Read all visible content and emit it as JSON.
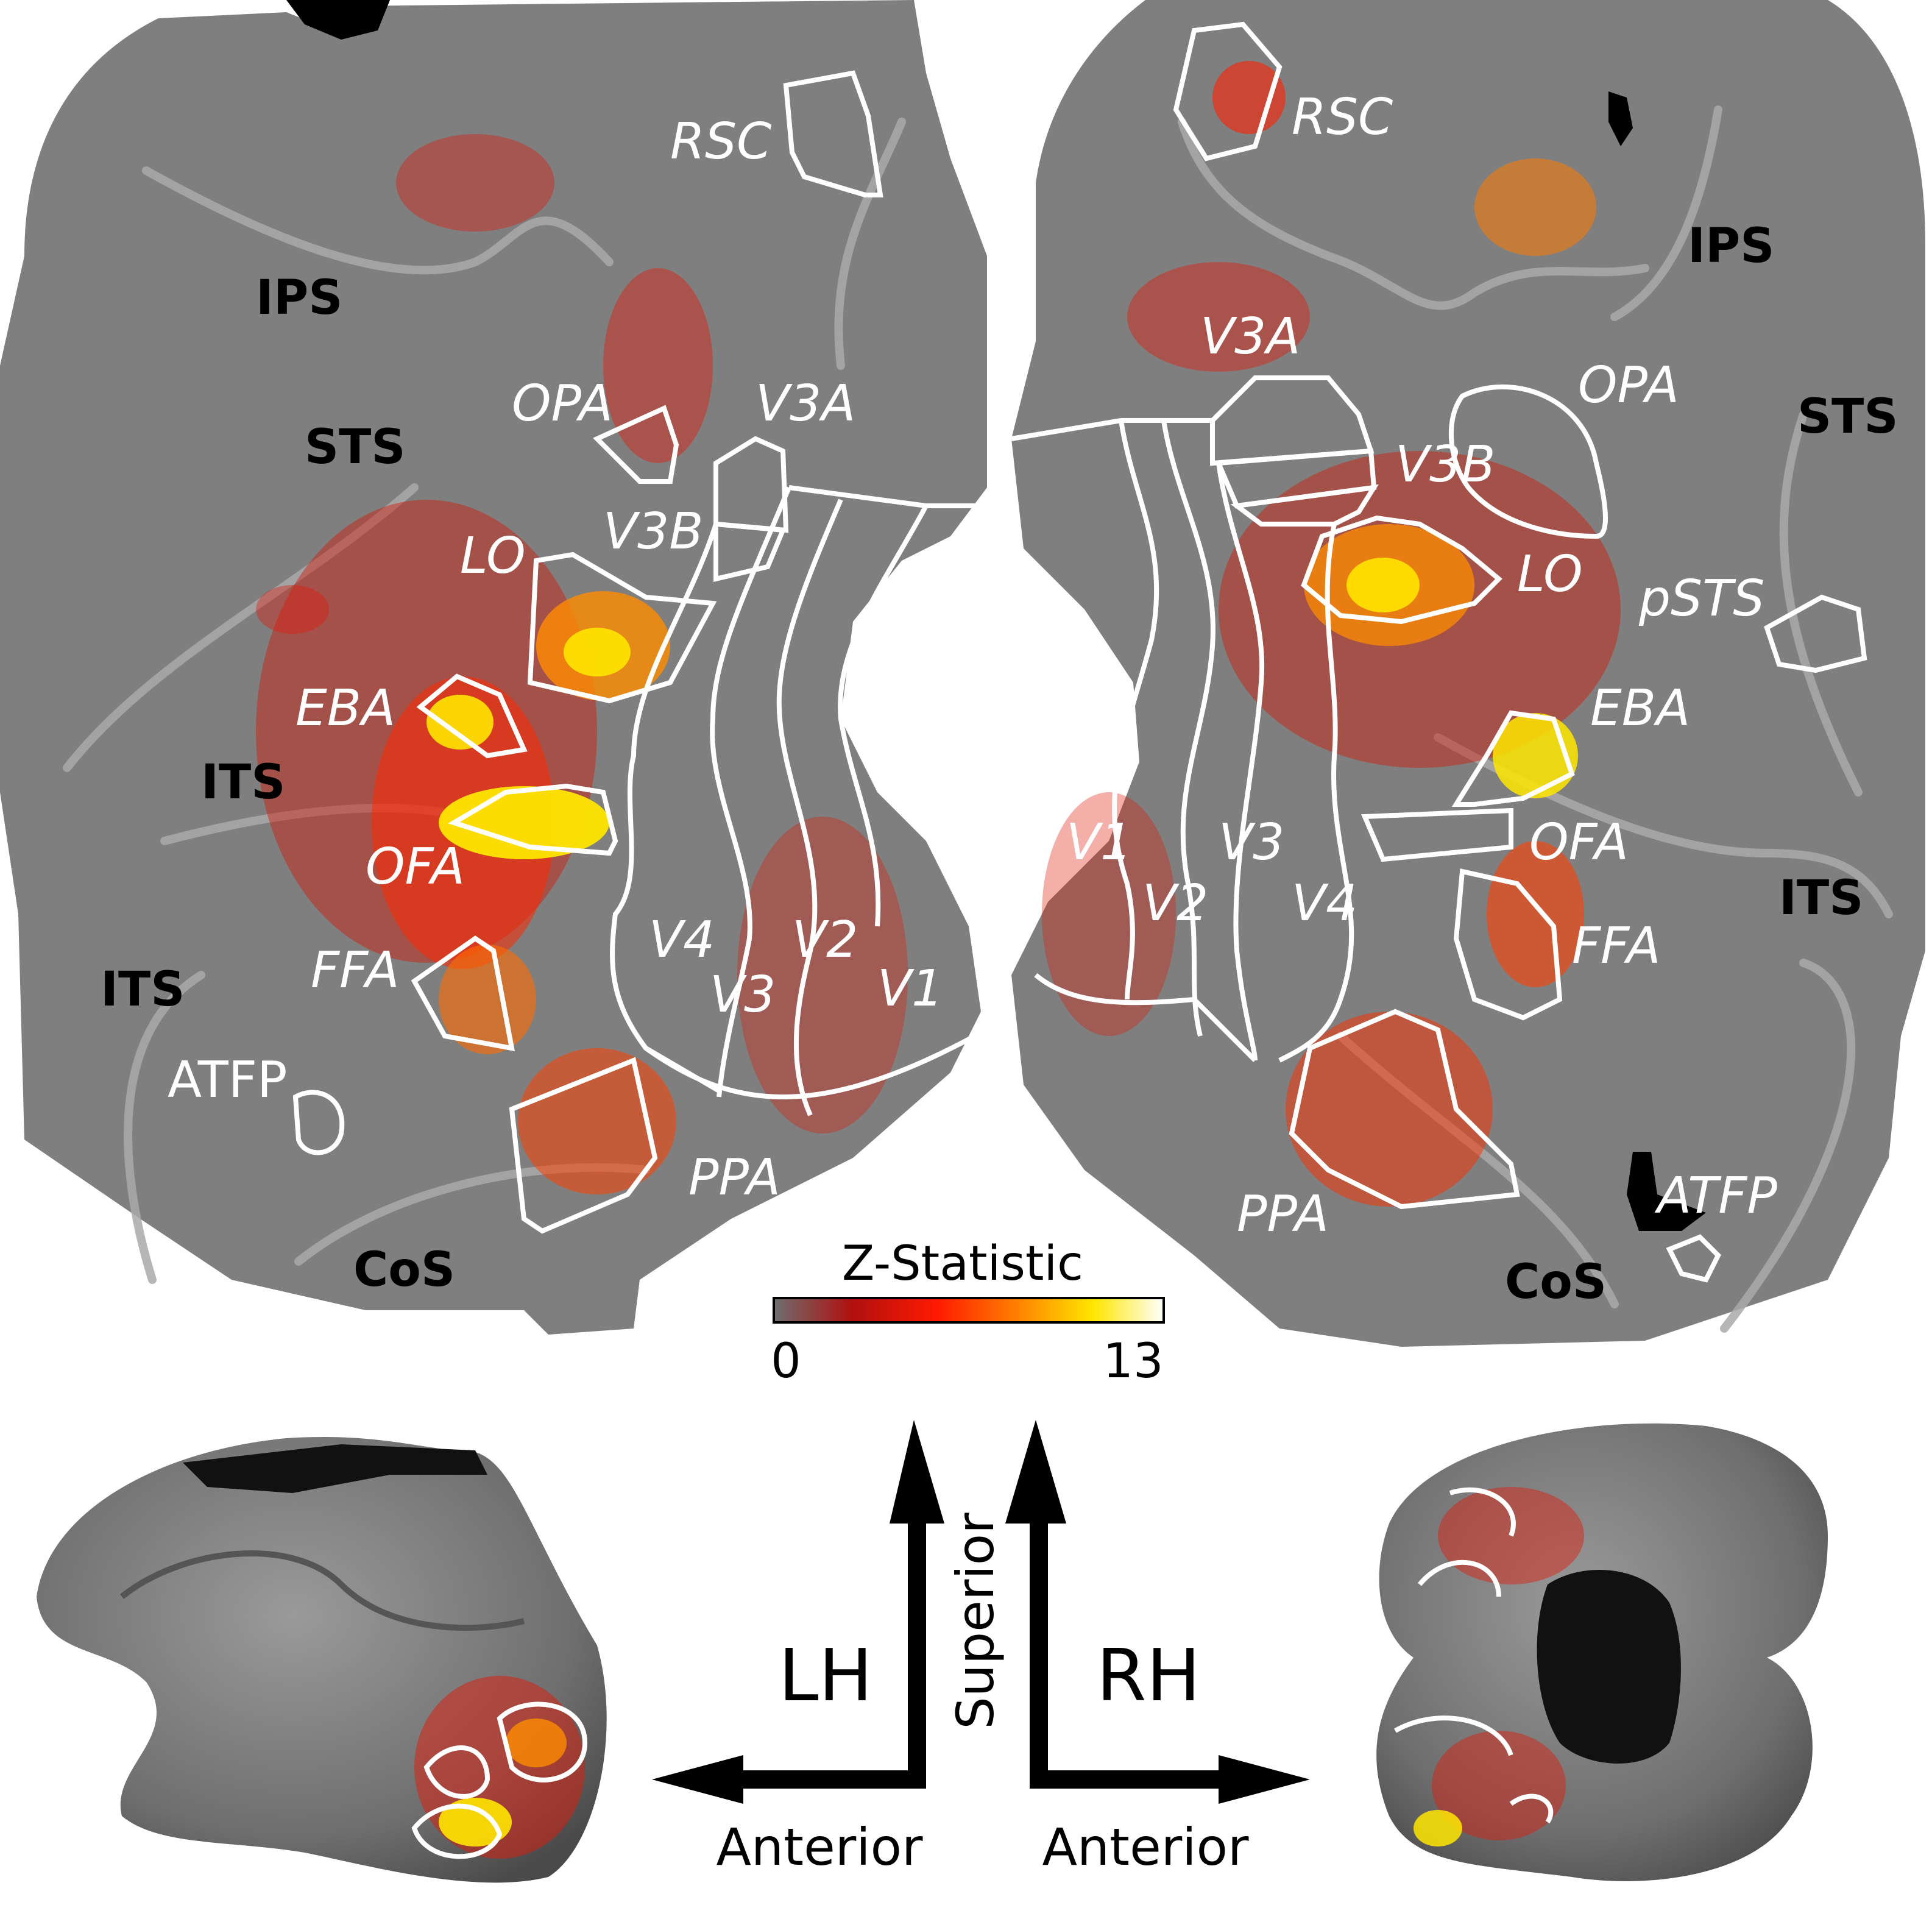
{
  "colorbar": {
    "title": "Z-Statistic",
    "min_label": "0",
    "max_label": "13",
    "gradient": [
      "#6e6e6e",
      "#b01010",
      "#ff1a00",
      "#ff7f00",
      "#ffe600",
      "#ffffff"
    ]
  },
  "left_flatmap": {
    "roi_labels": [
      "RSC",
      "OPA",
      "V3A",
      "V3B",
      "LO",
      "EBA",
      "OFA",
      "FFA",
      "ATFP",
      "PPA",
      "V4",
      "V3",
      "V2",
      "V1"
    ],
    "sulcus_labels": [
      "IPS",
      "STS",
      "ITS",
      "ITS",
      "CoS"
    ]
  },
  "right_flatmap": {
    "roi_labels": [
      "RSC",
      "V3A",
      "OPA",
      "V3B",
      "LO",
      "pSTS",
      "EBA",
      "OFA",
      "FFA",
      "ATFP",
      "PPA",
      "V1",
      "V2",
      "V3",
      "V4"
    ],
    "sulcus_labels": [
      "IPS",
      "STS",
      "ITS",
      "CoS"
    ]
  },
  "orientation": {
    "left_hemi": "LH",
    "right_hemi": "RH",
    "superior": "Superior",
    "anterior_left": "Anterior",
    "anterior_right": "Anterior"
  },
  "colors": {
    "cortex": "#7f7f7f",
    "roi_outline": "#ffffff",
    "sulcus_line": "#a9a9a9",
    "activation_low": "#e01010",
    "activation_mid": "#ff7f00",
    "activation_high": "#ffe600"
  }
}
